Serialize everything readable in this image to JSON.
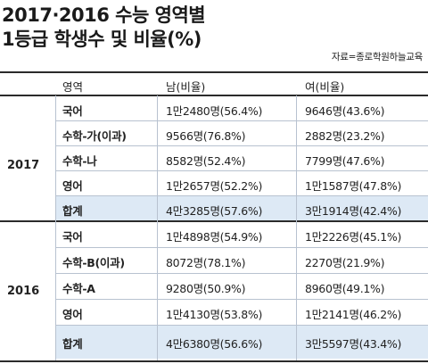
{
  "title": {
    "line1": "2017·2016 수능 영역별",
    "line2": "1등급 학생수 및 비율(%)"
  },
  "source": "자료=종로학원하늘교육",
  "table": {
    "headers": {
      "area": "영역",
      "male": "남(비율)",
      "female": "여(비율)"
    },
    "groups": [
      {
        "year": "2017",
        "rows": [
          {
            "area": "국어",
            "male": "1만2480명(56.4%)",
            "female": "9646명(43.6%)"
          },
          {
            "area": "수학-가(이과)",
            "male": "9566명(76.8%)",
            "female": "2882명(23.2%)"
          },
          {
            "area": "수학-나",
            "male": "8582명(52.4%)",
            "female": "7799명(47.6%)"
          },
          {
            "area": "영어",
            "male": "1만2657명(52.2%)",
            "female": "1만1587명(47.8%)"
          },
          {
            "area": "합계",
            "male": "4만3285명(57.6%)",
            "female": "3만1914명(42.4%)"
          }
        ]
      },
      {
        "year": "2016",
        "rows": [
          {
            "area": "국어",
            "male": "1만4898명(54.9%)",
            "female": "1만2226명(45.1%)"
          },
          {
            "area": "수학-B(이과)",
            "male": "8072명(78.1%)",
            "female": "2270명(21.9%)"
          },
          {
            "area": "수학-A",
            "male": "9280명(50.9%)",
            "female": "8960명(49.1%)"
          },
          {
            "area": "영어",
            "male": "1만4130명(53.8%)",
            "female": "1만2141명(46.2%)"
          },
          {
            "area": "합계",
            "male": "4만6380명(56.6%)",
            "female": "3만5597명(43.4%)"
          }
        ]
      }
    ]
  }
}
